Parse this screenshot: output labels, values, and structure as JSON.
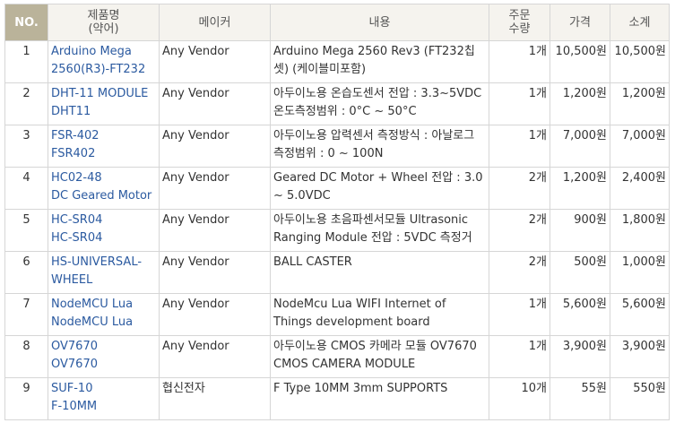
{
  "header": {
    "no": "NO.",
    "name": "제품명\n(약어)",
    "vendor": "메이커",
    "desc": "내용",
    "qty": "주문\n수량",
    "price": "가격",
    "total": "소계"
  },
  "rows": [
    {
      "no": "1",
      "name": "Arduino Mega 2560(R3)-FT232",
      "vendor": "Any Vendor",
      "desc": "Arduino Mega 2560 Rev3 (FT232칩셋) (케이블미포함)",
      "qty": "1개",
      "price": "10,500원",
      "total": "10,500원"
    },
    {
      "no": "2",
      "name": "DHT-11 MODULE",
      "abbr": "DHT11",
      "vendor": "Any Vendor",
      "desc": "아두이노용 온습도센서 전압 : 3.3~5VDC 온도측정범위 : 0°C ~ 50°C",
      "qty": "1개",
      "price": "1,200원",
      "total": "1,200원"
    },
    {
      "no": "3",
      "name": "FSR-402",
      "abbr": "FSR402",
      "vendor": "Any Vendor",
      "desc": "아두이노용 압력센서 측정방식 : 아날로그 측정범위 : 0 ~ 100N",
      "qty": "1개",
      "price": "7,000원",
      "total": "7,000원"
    },
    {
      "no": "4",
      "name": "HC02-48",
      "abbr": "DC Geared Motor",
      "vendor": "Any Vendor",
      "desc": "Geared DC Motor + Wheel 전압 : 3.0 ~ 5.0VDC",
      "qty": "2개",
      "price": "1,200원",
      "total": "2,400원"
    },
    {
      "no": "5",
      "name": "HC-SR04",
      "abbr": "HC-SR04",
      "vendor": "Any Vendor",
      "desc": "아두이노용 초음파센서모듈 Ultrasonic Ranging Module 전압 : 5VDC 측정거",
      "qty": "2개",
      "price": "900원",
      "total": "1,800원"
    },
    {
      "no": "6",
      "name": "HS-UNIVERSAL-WHEEL",
      "vendor": "Any Vendor",
      "desc": "BALL CASTER",
      "qty": "2개",
      "price": "500원",
      "total": "1,000원"
    },
    {
      "no": "7",
      "name": "NodeMCU Lua",
      "abbr": "NodeMCU Lua",
      "vendor": "Any Vendor",
      "desc": "NodeMcu Lua WIFI Internet of Things development board (NodeMcu Lua 와",
      "qty": "1개",
      "price": "5,600원",
      "total": "5,600원"
    },
    {
      "no": "8",
      "name": "OV7670",
      "abbr": "OV7670",
      "vendor": "Any Vendor",
      "desc": "아두이노용 CMOS 카메라 모듈 OV7670 CMOS CAMERA MODULE",
      "qty": "1개",
      "price": "3,900원",
      "total": "3,900원"
    },
    {
      "no": "9",
      "name": "SUF-10",
      "abbr": "F-10MM",
      "vendor": "협신전자",
      "desc": "F Type 10MM 3mm SUPPORTS",
      "qty": "10개",
      "price": "55원",
      "total": "550원"
    }
  ]
}
